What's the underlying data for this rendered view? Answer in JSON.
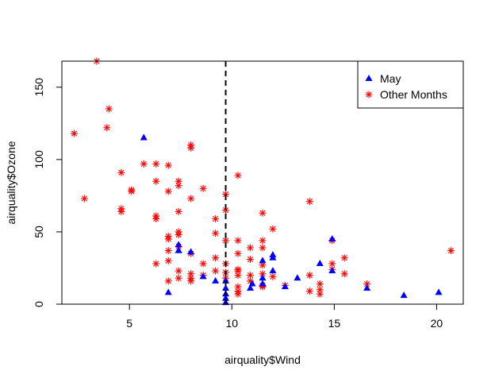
{
  "chart_data": {
    "type": "scatter",
    "title": "",
    "xlabel": "airquality$Wind",
    "ylabel": "airquality$Ozone",
    "xlim": [
      1.7,
      21.3
    ],
    "ylim": [
      0,
      168
    ],
    "xticks": [
      5,
      10,
      15,
      20
    ],
    "yticks": [
      0,
      50,
      100,
      150
    ],
    "grid": false,
    "legend_position": "top-right",
    "vline": {
      "x": 9.7,
      "style": "dashed",
      "color": "#000000"
    },
    "series": [
      {
        "name": "May",
        "marker": "triangle",
        "color": "#0000FF",
        "points": [
          [
            7.4,
            41
          ],
          [
            8.0,
            36
          ],
          [
            12.6,
            12
          ],
          [
            11.5,
            18
          ],
          [
            14.3,
            28
          ],
          [
            14.9,
            23
          ],
          [
            8.6,
            19
          ],
          [
            6.9,
            8
          ],
          [
            9.7,
            7
          ],
          [
            9.2,
            16
          ],
          [
            10.9,
            11
          ],
          [
            13.2,
            18
          ],
          [
            11.5,
            14
          ],
          [
            12.0,
            34
          ],
          [
            18.4,
            6
          ],
          [
            11.5,
            30
          ],
          [
            9.7,
            11
          ],
          [
            9.7,
            1
          ],
          [
            16.6,
            11
          ],
          [
            9.7,
            4
          ],
          [
            12.0,
            32
          ],
          [
            20.1,
            8
          ],
          [
            7.4,
            37
          ],
          [
            14.9,
            45
          ],
          [
            5.7,
            115
          ],
          [
            7.4,
            37
          ],
          [
            9.7,
            16
          ],
          [
            11.0,
            14
          ],
          [
            12.0,
            23
          ]
        ]
      },
      {
        "name": "Other Months",
        "marker": "asterisk",
        "color": "#FF0000",
        "points": [
          [
            3.4,
            168
          ],
          [
            4.0,
            135
          ],
          [
            3.9,
            122
          ],
          [
            2.3,
            118
          ],
          [
            8.0,
            110
          ],
          [
            8.0,
            108
          ],
          [
            5.7,
            97
          ],
          [
            6.3,
            97
          ],
          [
            6.9,
            96
          ],
          [
            4.6,
            91
          ],
          [
            10.3,
            89
          ],
          [
            6.3,
            85
          ],
          [
            7.4,
            85
          ],
          [
            7.4,
            82
          ],
          [
            8.6,
            80
          ],
          [
            5.1,
            79
          ],
          [
            5.1,
            78
          ],
          [
            6.9,
            78
          ],
          [
            9.7,
            76
          ],
          [
            2.8,
            73
          ],
          [
            8.0,
            73
          ],
          [
            13.8,
            71
          ],
          [
            4.6,
            66
          ],
          [
            4.6,
            64
          ],
          [
            7.4,
            64
          ],
          [
            9.7,
            65
          ],
          [
            11.5,
            63
          ],
          [
            6.3,
            61
          ],
          [
            6.3,
            59
          ],
          [
            9.2,
            59
          ],
          [
            12.0,
            52
          ],
          [
            7.4,
            50
          ],
          [
            9.2,
            49
          ],
          [
            7.4,
            48
          ],
          [
            6.9,
            47
          ],
          [
            6.9,
            45
          ],
          [
            9.7,
            44
          ],
          [
            10.3,
            44
          ],
          [
            11.5,
            44
          ],
          [
            14.9,
            44
          ],
          [
            7.4,
            40
          ],
          [
            10.9,
            39
          ],
          [
            11.5,
            39
          ],
          [
            6.9,
            37
          ],
          [
            20.7,
            37
          ],
          [
            10.3,
            35
          ],
          [
            8.0,
            35
          ],
          [
            15.5,
            32
          ],
          [
            10.9,
            31
          ],
          [
            9.2,
            32
          ],
          [
            6.9,
            30
          ],
          [
            12.6,
            13
          ],
          [
            6.3,
            28
          ],
          [
            8.6,
            28
          ],
          [
            9.7,
            28
          ],
          [
            11.5,
            27
          ],
          [
            10.3,
            24
          ],
          [
            14.9,
            24
          ],
          [
            7.4,
            23
          ],
          [
            10.3,
            23
          ],
          [
            9.7,
            22
          ],
          [
            15.5,
            21
          ],
          [
            8.0,
            21
          ],
          [
            11.5,
            21
          ],
          [
            13.8,
            20
          ],
          [
            10.9,
            20
          ],
          [
            8.6,
            20
          ],
          [
            10.3,
            20
          ],
          [
            12.0,
            19
          ],
          [
            14.3,
            14
          ],
          [
            11.5,
            13
          ],
          [
            13.8,
            9
          ],
          [
            10.3,
            9
          ],
          [
            14.3,
            10
          ],
          [
            14.3,
            7
          ],
          [
            16.6,
            14
          ],
          [
            8.0,
            18
          ],
          [
            9.7,
            18
          ],
          [
            6.9,
            16
          ],
          [
            10.9,
            16
          ],
          [
            7.4,
            18
          ],
          [
            8.0,
            16
          ],
          [
            10.3,
            12
          ],
          [
            11.5,
            12
          ],
          [
            14.9,
            28
          ],
          [
            10.3,
            7
          ],
          [
            9.2,
            23
          ]
        ]
      }
    ]
  }
}
